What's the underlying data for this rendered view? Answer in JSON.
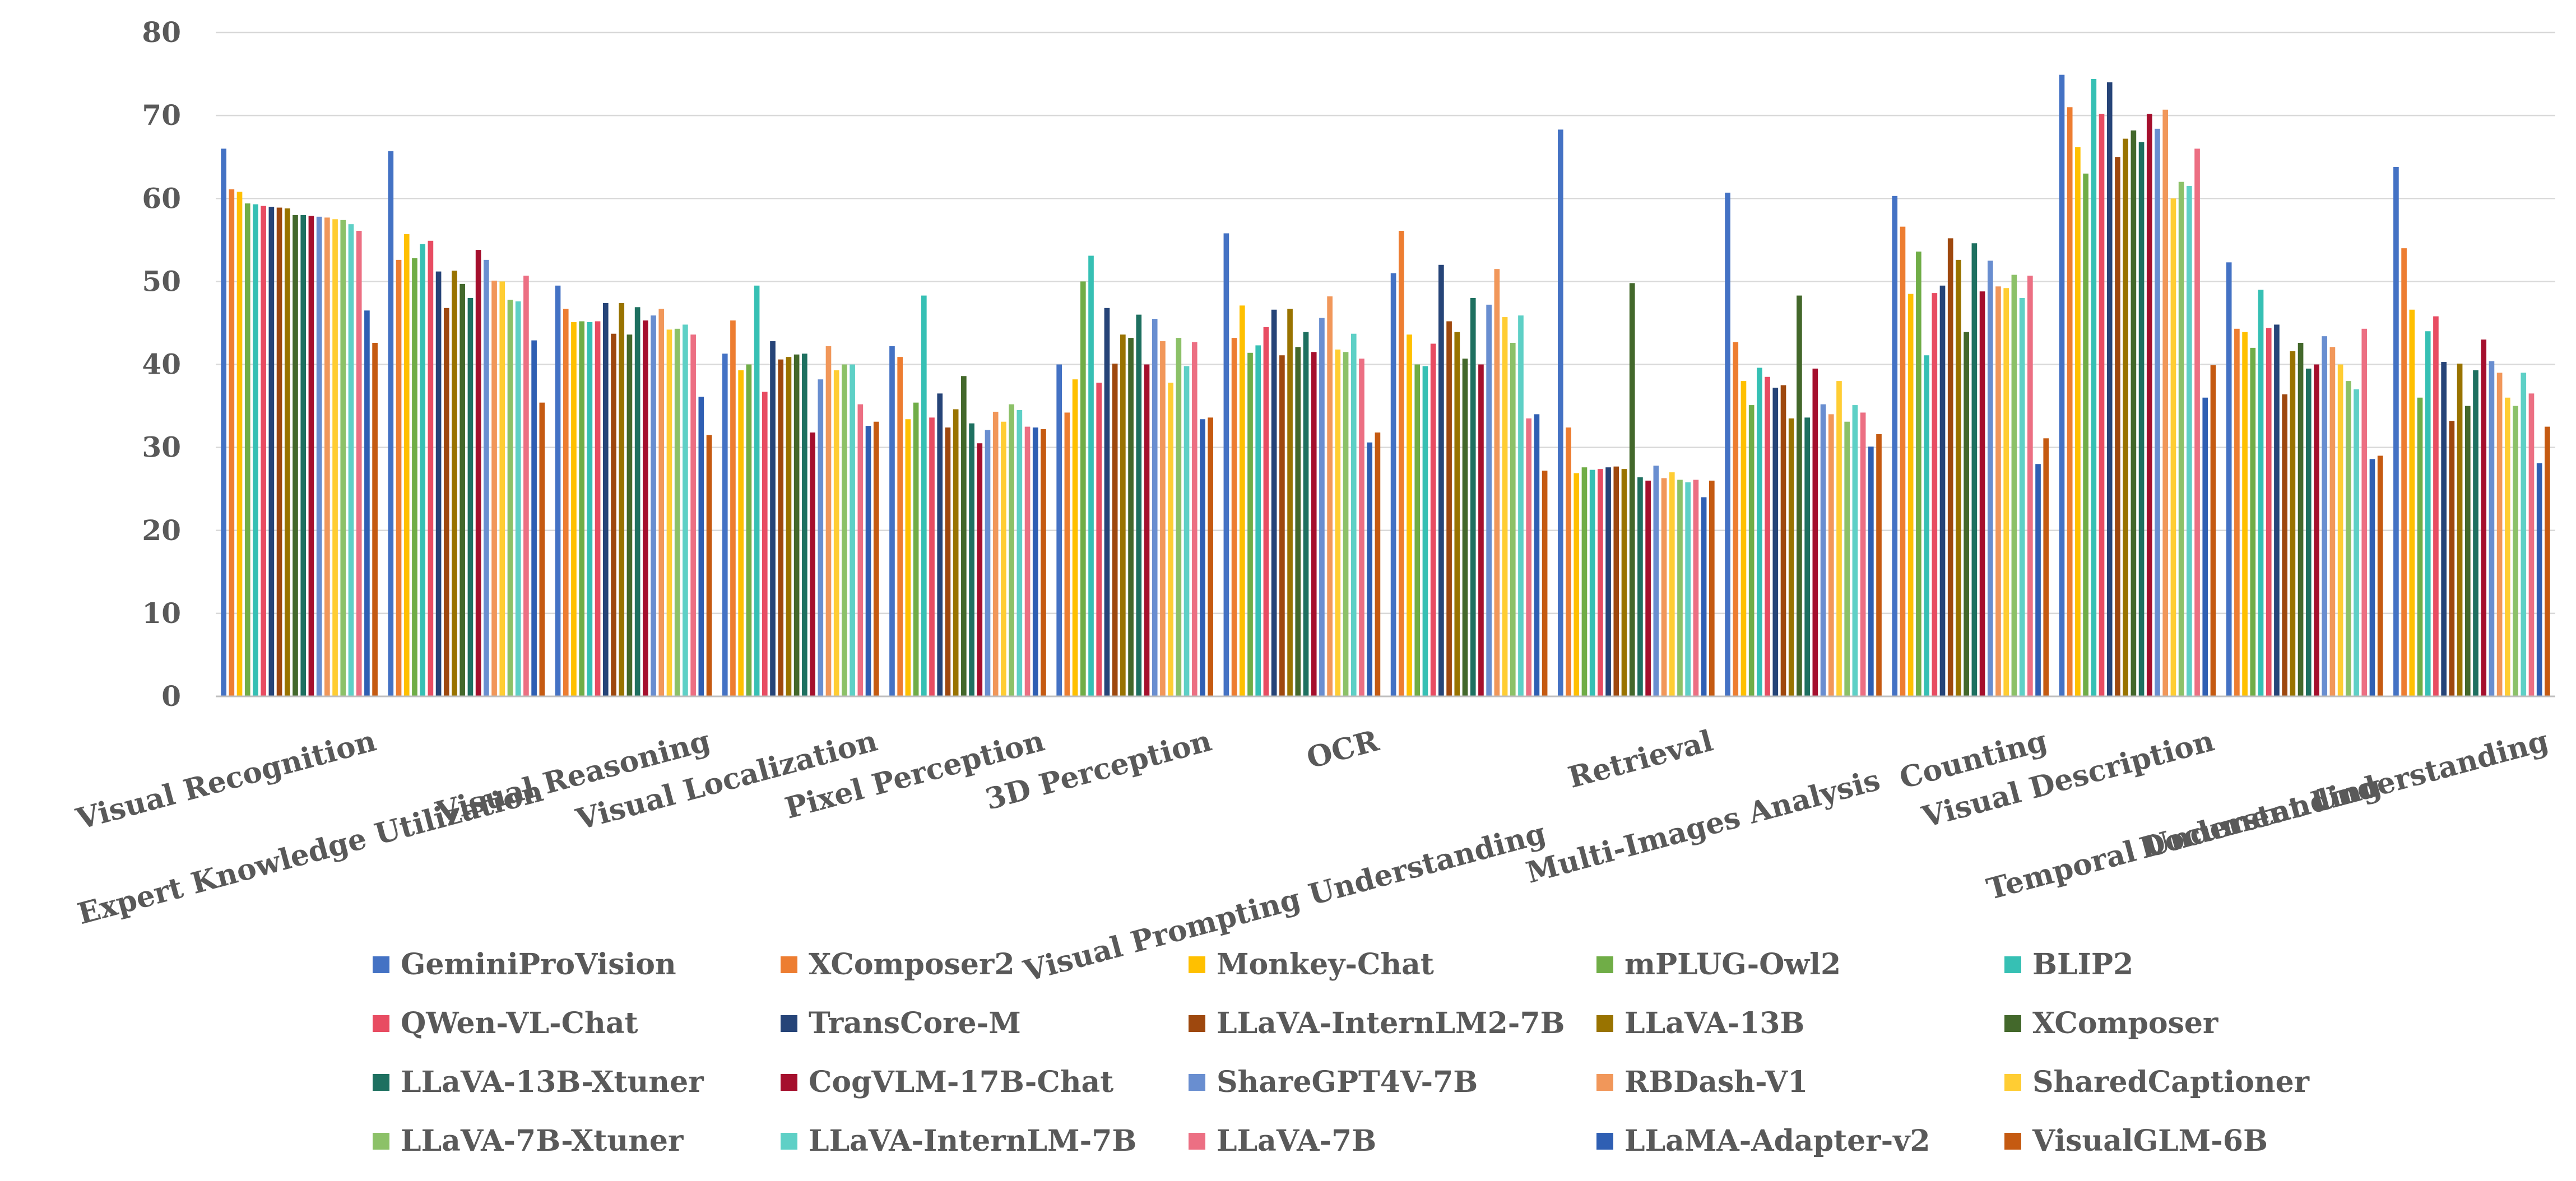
{
  "chart_data": {
    "type": "bar",
    "title": "",
    "xlabel": "",
    "ylabel": "",
    "ylim": [
      0,
      80
    ],
    "yticks": [
      0,
      10,
      20,
      30,
      40,
      50,
      60,
      70,
      80
    ],
    "grid": true,
    "legend_position": "bottom",
    "categories": [
      "Visual Recognition",
      "Expert Knowledge Utilization",
      "Visual Reasoning",
      "Visual Localization",
      "Pixel Perception",
      "3D Perception",
      "OCR",
      "Visual Prompting Understanding",
      "Retrieval",
      "Multi-Images Analysis",
      "Counting",
      "Visual Description",
      "Temporal Understanding",
      "Document Understanding"
    ],
    "series": [
      {
        "name": "GeminiProVision",
        "color": "#4472c4",
        "values": [
          66.0,
          65.7,
          49.5,
          41.3,
          42.2,
          40.0,
          55.8,
          51.0,
          68.3,
          60.7,
          60.3,
          74.9,
          52.3,
          63.8
        ]
      },
      {
        "name": "XComposer2",
        "color": "#ed7d31",
        "values": [
          61.1,
          52.6,
          46.7,
          45.3,
          40.9,
          34.2,
          43.2,
          56.1,
          32.4,
          42.7,
          56.6,
          71.0,
          44.3,
          54.0
        ]
      },
      {
        "name": "Monkey-Chat",
        "color": "#ffc000",
        "values": [
          60.8,
          55.7,
          45.1,
          39.3,
          33.4,
          38.2,
          47.1,
          43.6,
          26.9,
          38.0,
          48.5,
          66.2,
          43.9,
          46.6
        ]
      },
      {
        "name": "mPLUG-Owl2",
        "color": "#70ad47",
        "values": [
          59.4,
          52.8,
          45.2,
          40.0,
          35.4,
          50.0,
          41.4,
          40.0,
          27.6,
          35.1,
          53.6,
          63.0,
          42.0,
          36.0
        ]
      },
      {
        "name": "BLIP2",
        "color": "#36c0b4",
        "values": [
          59.3,
          54.5,
          45.1,
          49.5,
          48.3,
          53.1,
          42.3,
          39.8,
          27.3,
          39.6,
          41.1,
          74.4,
          49.0,
          44.0
        ]
      },
      {
        "name": "QWen-VL-Chat",
        "color": "#e84c62",
        "values": [
          59.1,
          54.9,
          45.2,
          36.7,
          33.6,
          37.8,
          44.5,
          42.5,
          27.4,
          38.5,
          48.6,
          70.2,
          44.4,
          45.8
        ]
      },
      {
        "name": "TransCore-M",
        "color": "#264478",
        "values": [
          59.0,
          51.2,
          47.4,
          42.8,
          36.5,
          46.8,
          46.6,
          52.0,
          27.6,
          37.2,
          49.5,
          74.0,
          44.8,
          40.3
        ]
      },
      {
        "name": "LLaVA-InternLM2-7B",
        "color": "#9e480e",
        "values": [
          58.9,
          46.8,
          43.7,
          40.6,
          32.4,
          40.1,
          41.1,
          45.2,
          27.7,
          37.5,
          55.2,
          65.0,
          36.4,
          33.2
        ]
      },
      {
        "name": "LLaVA-13B",
        "color": "#997300",
        "values": [
          58.8,
          51.3,
          47.4,
          40.9,
          34.6,
          43.6,
          46.7,
          43.9,
          27.4,
          33.5,
          52.6,
          67.2,
          41.6,
          40.1
        ]
      },
      {
        "name": "XComposer",
        "color": "#43682b",
        "values": [
          58.0,
          49.7,
          43.6,
          41.2,
          38.6,
          43.2,
          42.1,
          40.7,
          49.8,
          48.3,
          43.9,
          68.2,
          42.6,
          35.0
        ]
      },
      {
        "name": "LLaVA-13B-Xtuner",
        "color": "#1e7060",
        "values": [
          58.0,
          48.0,
          46.9,
          41.3,
          32.9,
          46.0,
          43.9,
          48.0,
          26.4,
          33.6,
          54.6,
          66.8,
          39.5,
          39.3
        ]
      },
      {
        "name": "CogVLM-17B-Chat",
        "color": "#a50f2d",
        "values": [
          57.9,
          53.8,
          45.3,
          31.8,
          30.5,
          40.0,
          41.5,
          40.0,
          26.0,
          39.5,
          48.8,
          70.2,
          40.0,
          43.0
        ]
      },
      {
        "name": "ShareGPT4V-7B",
        "color": "#698ed0",
        "values": [
          57.8,
          52.6,
          45.9,
          38.2,
          32.1,
          45.5,
          45.6,
          47.2,
          27.8,
          35.2,
          52.5,
          68.4,
          43.4,
          40.4
        ]
      },
      {
        "name": "RBDash-V1",
        "color": "#f1975a",
        "values": [
          57.7,
          50.1,
          46.7,
          42.2,
          34.3,
          42.8,
          48.2,
          51.5,
          26.3,
          34.0,
          49.4,
          70.7,
          42.1,
          39.0
        ]
      },
      {
        "name": "SharedCaptioner",
        "color": "#ffcd33",
        "values": [
          57.5,
          50.0,
          44.2,
          39.3,
          33.1,
          37.8,
          41.8,
          45.7,
          27.0,
          38.0,
          49.2,
          60.0,
          40.0,
          36.0
        ]
      },
      {
        "name": "LLaVA-7B-Xtuner",
        "color": "#8cc168",
        "values": [
          57.4,
          47.8,
          44.3,
          40.0,
          35.2,
          43.2,
          41.5,
          42.6,
          26.1,
          33.1,
          50.8,
          62.0,
          38.0,
          35.0
        ]
      },
      {
        "name": "LLaVA-InternLM-7B",
        "color": "#5ed0c6",
        "values": [
          56.9,
          47.6,
          44.8,
          40.0,
          34.5,
          39.8,
          43.7,
          45.9,
          25.8,
          35.1,
          48.0,
          61.5,
          37.0,
          39.0
        ]
      },
      {
        "name": "LLaVA-7B",
        "color": "#ec6f83",
        "values": [
          56.1,
          50.7,
          43.6,
          35.2,
          32.5,
          42.7,
          40.7,
          33.5,
          26.1,
          34.2,
          50.7,
          66.0,
          44.3,
          36.5
        ]
      },
      {
        "name": "LLaMA-Adapter-v2",
        "color": "#2f5fb3",
        "values": [
          46.5,
          42.9,
          36.1,
          32.6,
          32.4,
          33.4,
          30.6,
          34.0,
          24.0,
          30.1,
          28.0,
          36.0,
          28.6,
          28.1
        ]
      },
      {
        "name": "VisualGLM-6B",
        "color": "#c55a11",
        "values": [
          42.6,
          35.4,
          31.5,
          33.1,
          32.2,
          33.6,
          31.8,
          27.2,
          26.0,
          31.6,
          31.1,
          39.9,
          29.0,
          32.5
        ]
      }
    ]
  }
}
